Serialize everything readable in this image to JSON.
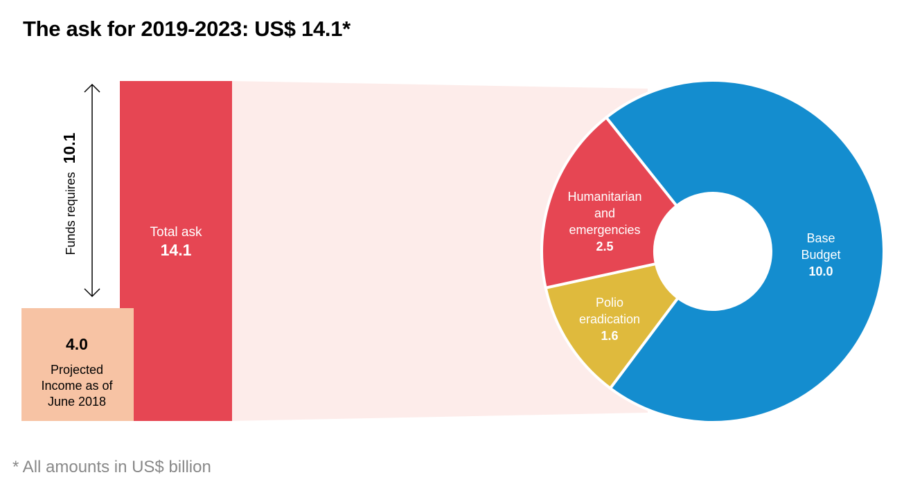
{
  "title": "The ask for 2019-2023: US$ 14.1*",
  "footnote": "* All amounts in US$ billion",
  "colors": {
    "total_bar": "#E64653",
    "projected_income": "#F7C3A4",
    "funnel": "#FDECEA",
    "base_budget": "#148DCF",
    "humanitarian": "#E64653",
    "polio": "#DFBA3D"
  },
  "chart_data": [
    {
      "type": "bar",
      "title": "The ask for 2019-2023",
      "bars": [
        {
          "name": "Projected Income as of June 2018",
          "label": "Projected Income as of June 2018",
          "label_lines": [
            "Projected",
            "Income as of",
            "June 2018"
          ],
          "value": 4.0,
          "value_label": "4.0"
        },
        {
          "name": "Total ask",
          "label": "Total ask",
          "value": 14.1,
          "value_label": "14.1"
        }
      ],
      "gap": {
        "label": "Funds requires",
        "value": 10.1,
        "value_label": "10.1"
      },
      "ylim": [
        0,
        14.1
      ]
    },
    {
      "type": "pie",
      "donut": true,
      "slices": [
        {
          "name": "Base Budget",
          "label_lines": [
            "Base",
            "Budget"
          ],
          "value": 10.0,
          "value_label": "10.0"
        },
        {
          "name": "Polio eradication",
          "label_lines": [
            "Polio",
            "eradication"
          ],
          "value": 1.6,
          "value_label": "1.6"
        },
        {
          "name": "Humanitarian and emergencies",
          "label_lines": [
            "Humanitarian",
            "and",
            "emergencies"
          ],
          "value": 2.5,
          "value_label": "2.5"
        }
      ]
    }
  ]
}
